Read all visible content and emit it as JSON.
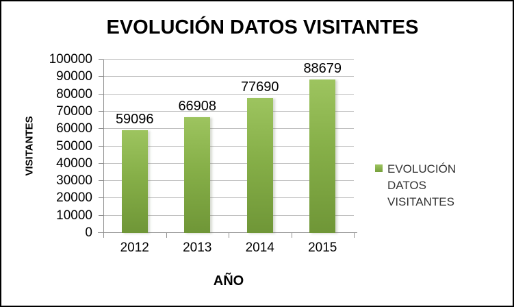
{
  "chart_data": {
    "type": "bar",
    "title": "EVOLUCIÓN DATOS VISITANTES",
    "categories": [
      "2012",
      "2013",
      "2014",
      "2015"
    ],
    "series": [
      {
        "name": "EVOLUCIÓN DATOS VISITANTES",
        "values": [
          59096,
          66908,
          77690,
          88679
        ]
      }
    ],
    "data_labels": [
      "59096",
      "66908",
      "77690",
      "88679"
    ],
    "xlabel": "AÑO",
    "ylabel": "VISITANTES",
    "ylim": [
      0,
      100000
    ],
    "ytick_step": 10000,
    "ytick_labels": [
      "0",
      "10000",
      "20000",
      "30000",
      "40000",
      "50000",
      "60000",
      "70000",
      "80000",
      "90000",
      "100000"
    ],
    "grid": true,
    "legend_position": "right",
    "colors": {
      "bar_gradient_top": "#9dc45f",
      "bar_gradient_bottom": "#6f9637",
      "gridline": "#c0c0c0",
      "axis": "#8e8e8e",
      "title_text": "#000000",
      "legend_text": "#333333",
      "frame_border": "#000000",
      "background": "#ffffff"
    }
  }
}
